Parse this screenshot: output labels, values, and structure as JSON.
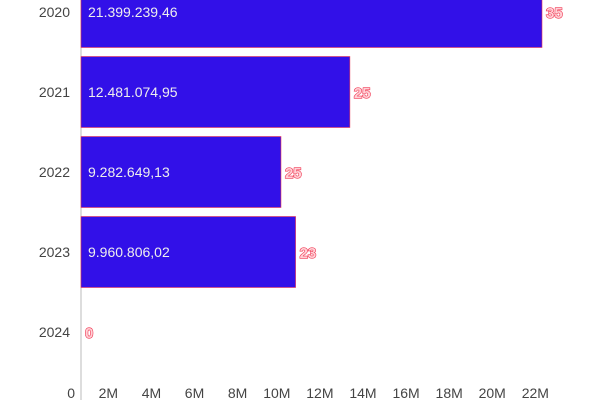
{
  "chart_data": {
    "type": "bar",
    "orientation": "horizontal",
    "categories": [
      "2020",
      "2021",
      "2022",
      "2023",
      "2024"
    ],
    "values": [
      21399239.46,
      12481074.95,
      9282649.13,
      9960806.02,
      0
    ],
    "value_labels": [
      "21.399.239,46",
      "12.481.074,95",
      "9.282.649,13",
      "9.960.806,02",
      ""
    ],
    "count_labels": [
      "35",
      "25",
      "25",
      "23",
      "0"
    ],
    "x_ticks": [
      "0",
      "2M",
      "4M",
      "6M",
      "8M",
      "10M",
      "12M",
      "14M",
      "16M",
      "18M",
      "20M",
      "22M"
    ],
    "xlim": [
      0,
      22000000
    ],
    "grid": false,
    "colors": {
      "bar": "#3210e8",
      "count_label": "#f0344f"
    }
  }
}
